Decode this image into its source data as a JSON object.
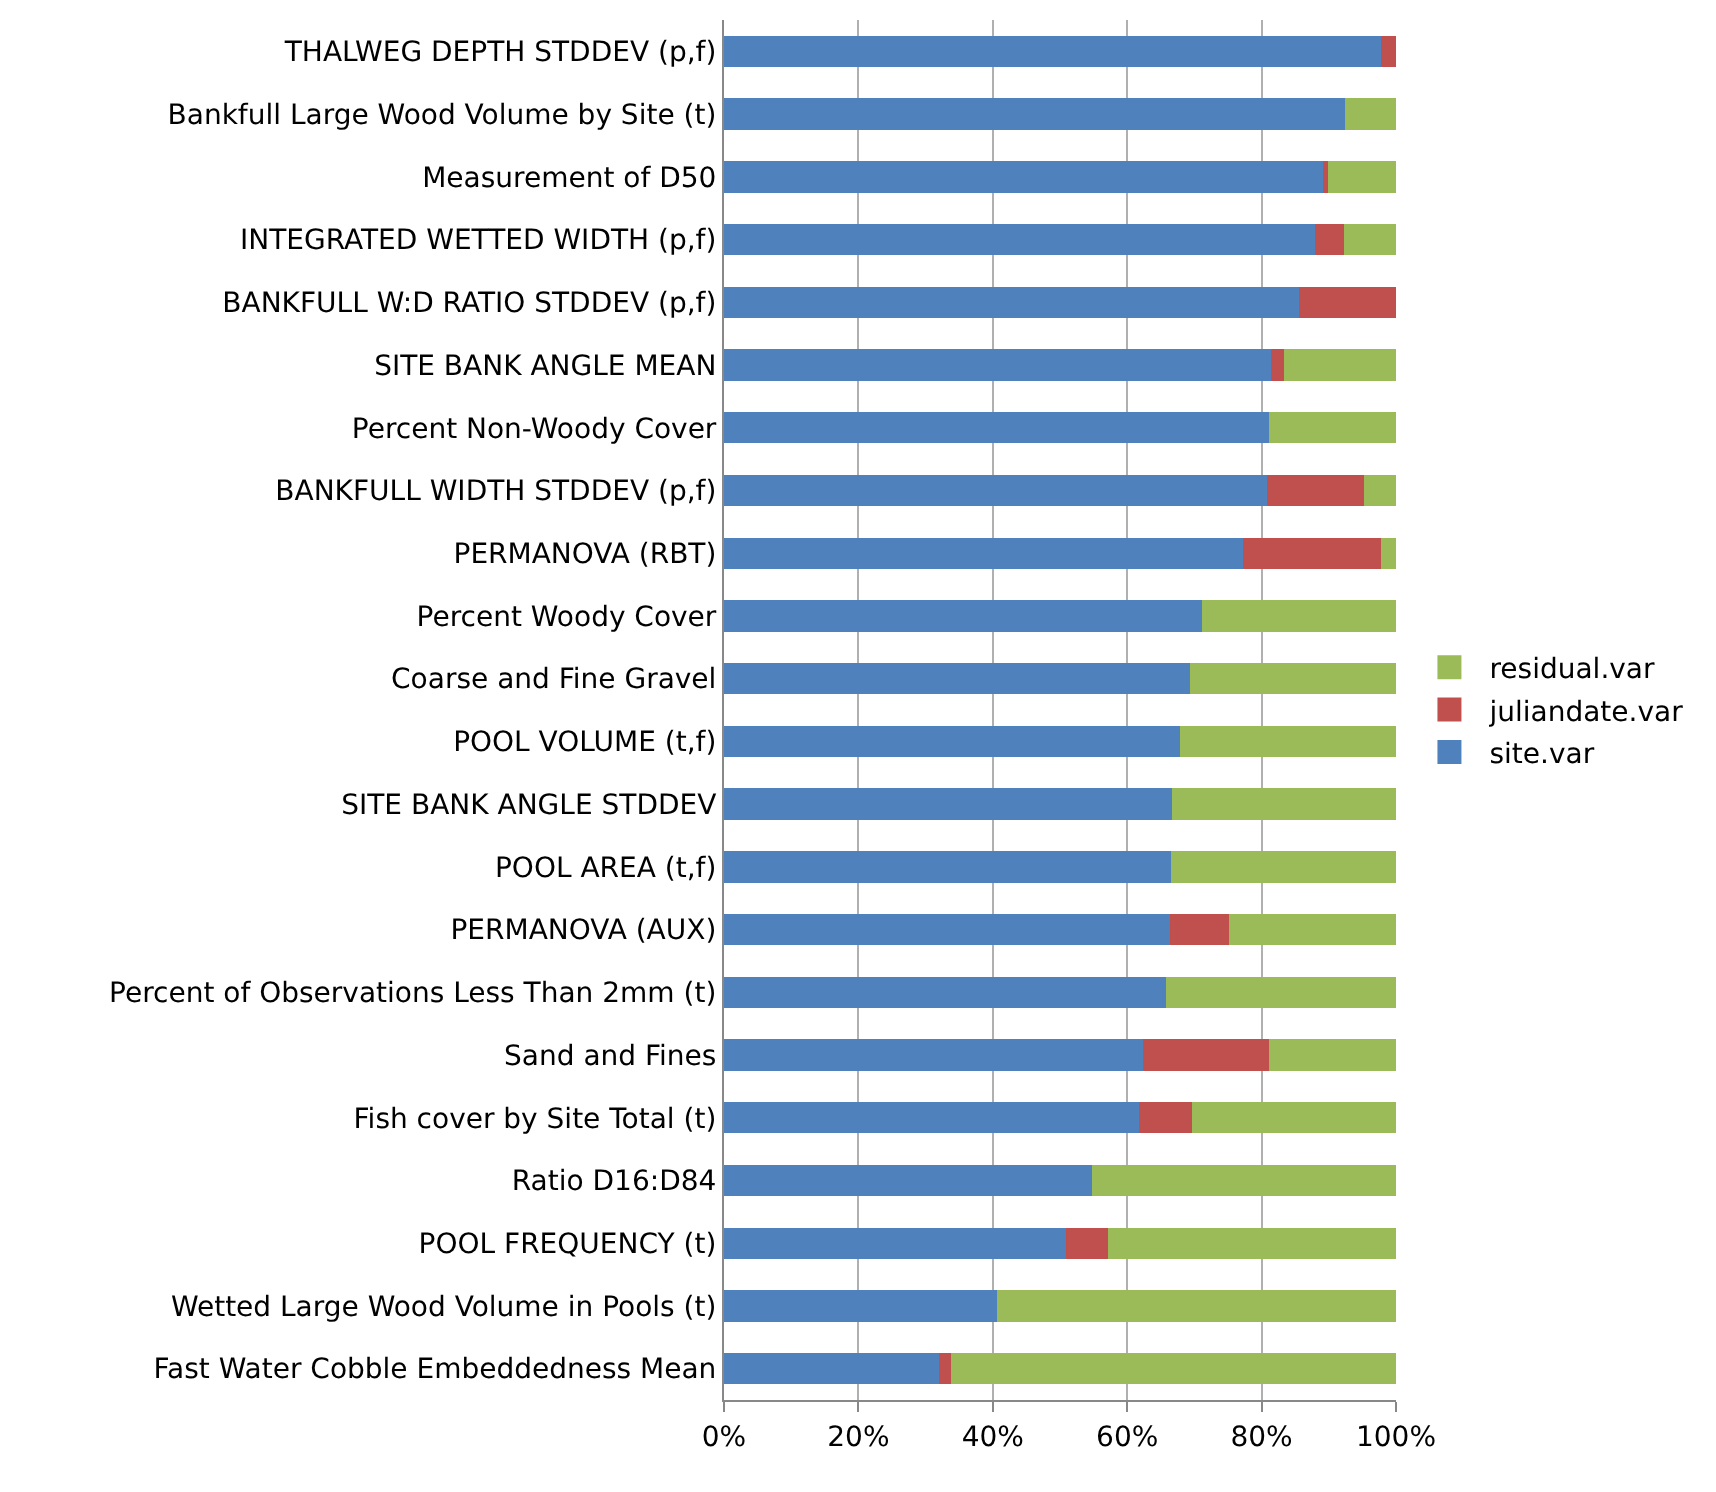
{
  "chart_data": {
    "type": "bar",
    "orientation": "horizontal",
    "stacked": true,
    "categories": [
      "THALWEG DEPTH STDDEV (p,f)",
      "Bankfull Large Wood Volume by Site (t)",
      "Measurement of D50",
      "INTEGRATED WETTED WIDTH (p,f)",
      "BANKFULL W:D RATIO STDDEV (p,f)",
      "SITE BANK ANGLE MEAN",
      "Percent Non-Woody Cover",
      "BANKFULL WIDTH STDDEV (p,f)",
      "PERMANOVA (RBT)",
      "Percent Woody Cover",
      "Coarse and Fine Gravel",
      "POOL VOLUME (t,f)",
      "SITE BANK ANGLE STDDEV",
      "POOL AREA (t,f)",
      "PERMANOVA (AUX)",
      "Percent of Observations Less Than 2mm (t)",
      "Sand and Fines",
      "Fish cover by Site Total (t)",
      "Ratio D16:D84",
      "POOL FREQUENCY (t)",
      "Wetted Large Wood Volume in Pools (t)",
      "Fast Water Cobble Embeddedness Mean"
    ],
    "series": [
      {
        "name": "site.var",
        "color": "#4f81bd",
        "values": [
          97.7,
          92.4,
          89.1,
          87.9,
          85.5,
          81.4,
          81.1,
          80.8,
          77.3,
          71.1,
          69.3,
          67.8,
          66.7,
          66.5,
          66.4,
          65.7,
          62.3,
          61.8,
          54.8,
          50.9,
          40.6,
          32.0
        ]
      },
      {
        "name": "juliandate.var",
        "color": "#c0504d",
        "values": [
          2.3,
          0,
          0.8,
          4.3,
          14.5,
          1.9,
          0,
          14.5,
          20.4,
          0,
          0,
          0,
          0,
          0,
          8.7,
          0,
          18.8,
          7.8,
          0,
          6.3,
          0,
          1.8
        ]
      },
      {
        "name": "residual.var",
        "color": "#9bbb59",
        "values": [
          0,
          7.6,
          10.1,
          7.8,
          0,
          16.7,
          18.9,
          4.7,
          2.3,
          28.9,
          30.7,
          32.2,
          33.3,
          33.5,
          24.9,
          34.3,
          18.9,
          30.4,
          45.2,
          42.8,
          59.4,
          66.2
        ]
      }
    ],
    "xlim": [
      0,
      100
    ],
    "xticks": [
      {
        "value": 0,
        "label": "0%"
      },
      {
        "value": 20,
        "label": "20%"
      },
      {
        "value": 40,
        "label": "40%"
      },
      {
        "value": 60,
        "label": "60%"
      },
      {
        "value": 80,
        "label": "80%"
      },
      {
        "value": 100,
        "label": "100%"
      }
    ],
    "grid": "x",
    "legend": "right"
  }
}
